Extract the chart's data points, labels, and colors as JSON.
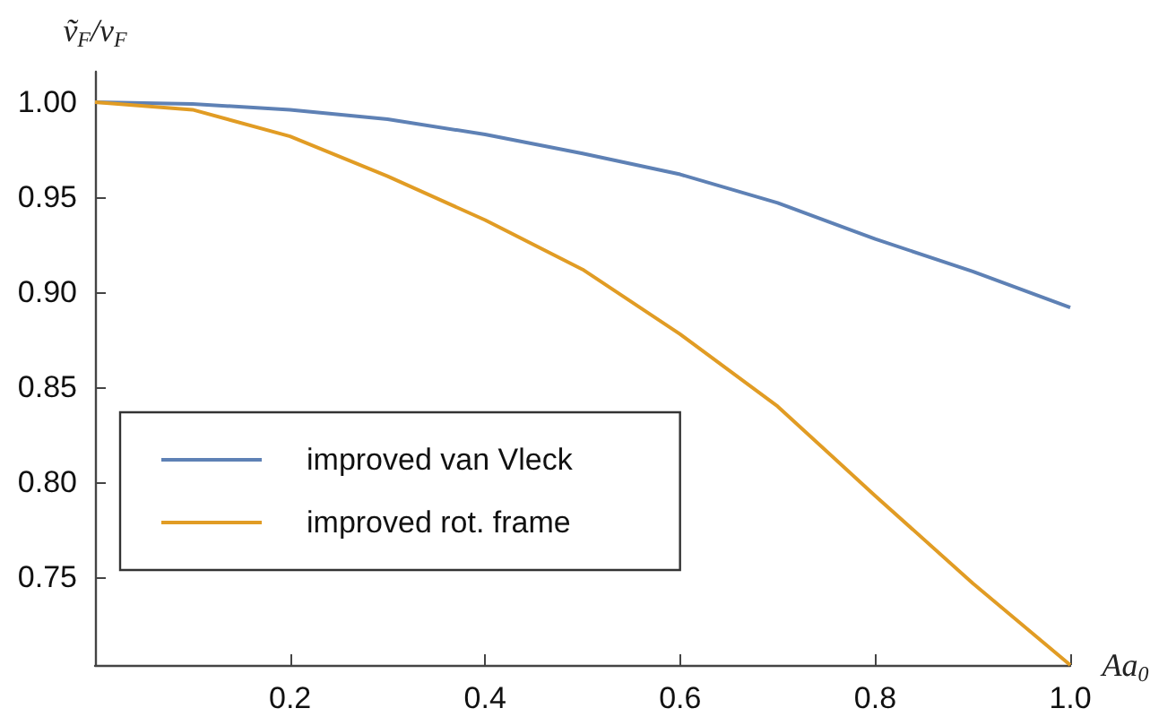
{
  "chart_data": {
    "type": "line",
    "xlabel": "Aa$_{0}$",
    "ylabel": "ṽ$_{F}$/v$_{F}$",
    "x": [
      0,
      0.1,
      0.2,
      0.3,
      0.4,
      0.5,
      0.6,
      0.7,
      0.8,
      0.9,
      1.0
    ],
    "series": [
      {
        "name": "improved van Vleck",
        "color": "#5e81b5",
        "values": [
          1.0,
          0.999,
          0.996,
          0.991,
          0.983,
          0.973,
          0.962,
          0.947,
          0.928,
          0.911,
          0.892
        ]
      },
      {
        "name": "improved rot. frame",
        "color": "#e19c24",
        "values": [
          1.0,
          0.996,
          0.982,
          0.961,
          0.938,
          0.912,
          0.878,
          0.84,
          0.793,
          0.747,
          0.704
        ]
      }
    ],
    "xlim": [
      0,
      1
    ],
    "ylim": [
      0.704,
      1.016
    ],
    "xticks": [
      0.2,
      0.4,
      0.6,
      0.8,
      {
        "value": 1,
        "label": "1.0"
      }
    ],
    "yticks": [
      0.75,
      {
        "value": 0.8,
        "label": "0.80"
      },
      0.85,
      {
        "value": 0.9,
        "label": "0.90"
      },
      0.95,
      {
        "value": 1,
        "label": "1.00"
      }
    ],
    "grid": false,
    "legend": "bottom left",
    "marker": "none",
    "line_style": "solid"
  }
}
